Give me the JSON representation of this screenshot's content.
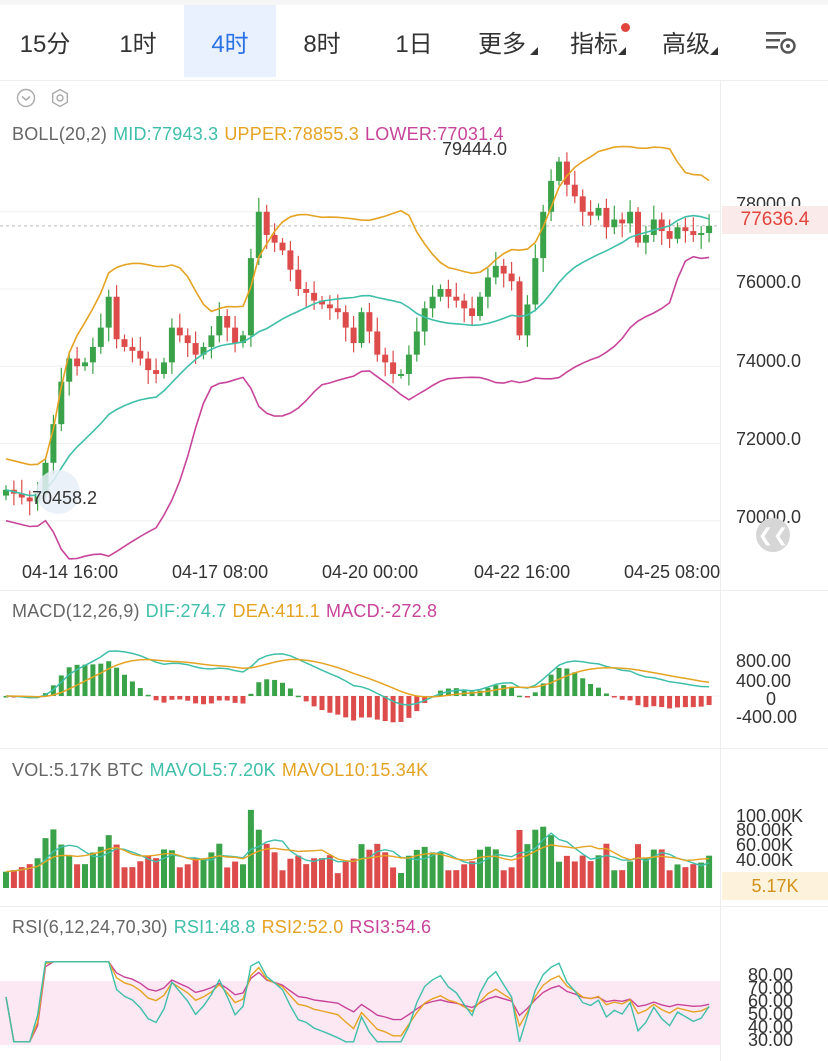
{
  "tabs": [
    {
      "label": "15分",
      "active": false
    },
    {
      "label": "1时",
      "active": false
    },
    {
      "label": "4时",
      "active": true
    },
    {
      "label": "8时",
      "active": false
    },
    {
      "label": "1日",
      "active": false
    },
    {
      "label": "更多",
      "active": false,
      "dropdown": true
    },
    {
      "label": "指标",
      "active": false,
      "dropdown": true,
      "badge": true
    },
    {
      "label": "高级",
      "active": false,
      "dropdown": true
    }
  ],
  "settings_icon": "chart-settings-icon",
  "boll": {
    "name": "BOLL(20,2)",
    "mid": "MID:77943.3",
    "upper": "UPPER:78855.3",
    "lower": "LOWER:77031.4"
  },
  "price_axis": [
    "78000.0",
    "76000.0",
    "74000.0",
    "72000.0",
    "70000.0"
  ],
  "current_price": "77636.4",
  "high_label": "79444.0",
  "low_label": "70458.2",
  "time_axis": [
    "04-14 16:00",
    "04-17 08:00",
    "04-20 00:00",
    "04-22 16:00",
    "04-25 08:00"
  ],
  "macd": {
    "name": "MACD(12,26,9)",
    "dif": "DIF:274.7",
    "dea": "DEA:411.1",
    "macd": "MACD:-272.8",
    "axis": [
      "800.00",
      "400.00",
      "0",
      "-400.00"
    ]
  },
  "vol": {
    "name": "VOL:5.17K BTC",
    "mavol5": "MAVOL5:7.20K",
    "mavol10": "MAVOL10:15.34K",
    "axis": [
      "100.00K",
      "80.00K",
      "60.00K",
      "40.00K"
    ],
    "current": "5.17K"
  },
  "rsi": {
    "name": "RSI(6,12,24,70,30)",
    "rsi1": "RSI1:48.8",
    "rsi2": "RSI2:52.0",
    "rsi3": "RSI3:54.6",
    "axis": [
      "80.00",
      "70.00",
      "60.00",
      "50.00",
      "40.00",
      "30.00"
    ]
  },
  "colors": {
    "up": "#3aa34a",
    "down": "#dd4b4b",
    "mid": "#3fbfa9",
    "upper": "#e5a323",
    "lower": "#c8449a",
    "active_tab": "#2a72e6"
  },
  "chart_data": {
    "type": "candlestick",
    "y_range": [
      69500,
      79600
    ],
    "closes": [
      70800,
      70700,
      70600,
      70500,
      70700,
      71500,
      72500,
      73600,
      74200,
      74000,
      74100,
      74500,
      75000,
      75800,
      74700,
      74500,
      74400,
      74200,
      73900,
      73800,
      74100,
      75000,
      74800,
      74600,
      74300,
      74500,
      74800,
      75300,
      75000,
      74600,
      74800,
      76800,
      78000,
      77400,
      77200,
      77000,
      76500,
      76000,
      75900,
      75700,
      75600,
      75500,
      75400,
      75000,
      74600,
      75400,
      74900,
      74300,
      74100,
      73800,
      73800,
      74300,
      74900,
      75500,
      75800,
      76000,
      75800,
      75700,
      75500,
      75300,
      75800,
      76300,
      76600,
      76400,
      76200,
      74800,
      75600,
      76800,
      78000,
      78800,
      79300,
      78700,
      78400,
      78000,
      77900,
      78100,
      77600,
      77800,
      77700,
      78000,
      77200,
      77400,
      77800,
      77500,
      77300,
      77600,
      77500,
      77400,
      77450,
      77636
    ]
  }
}
